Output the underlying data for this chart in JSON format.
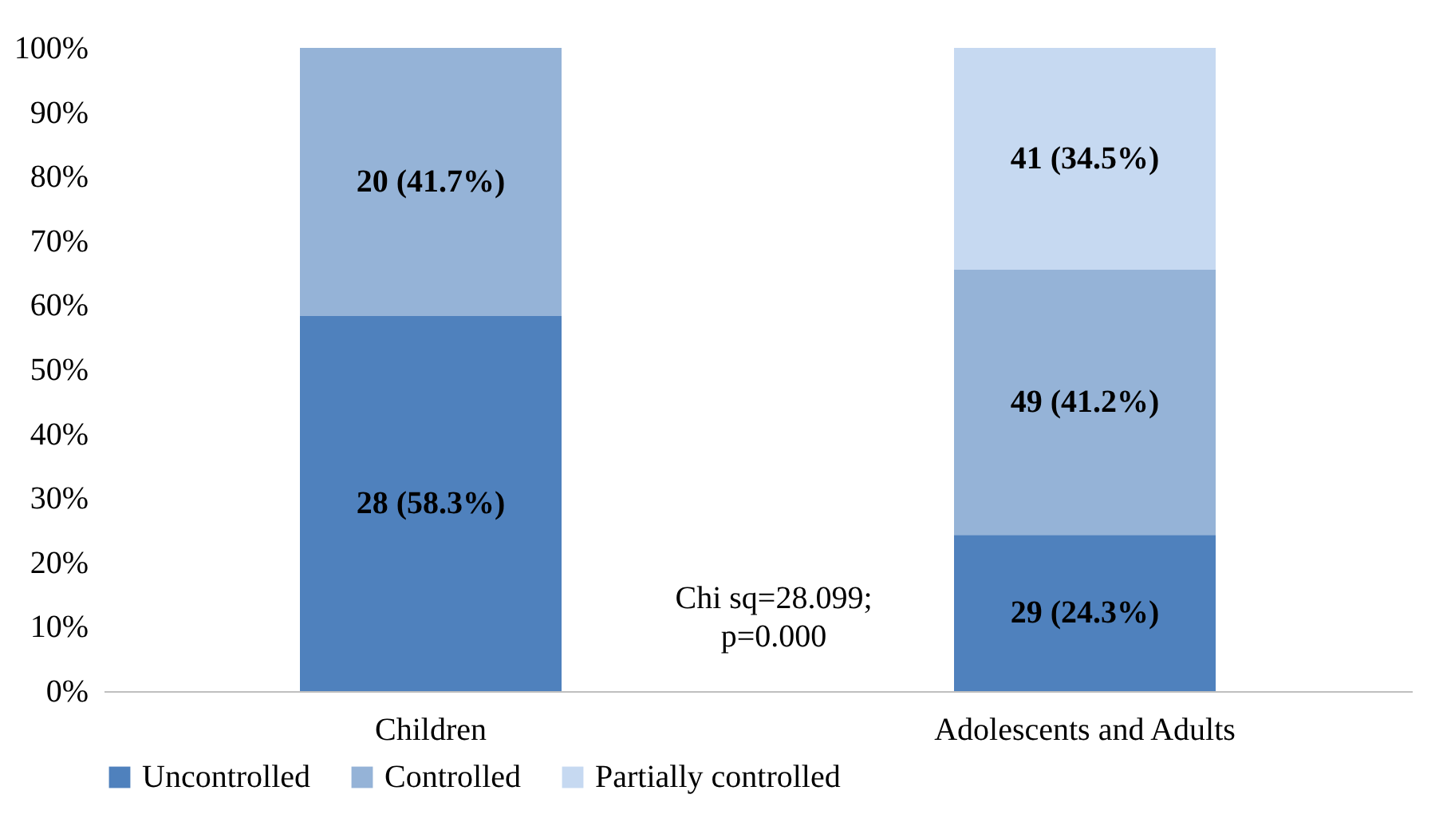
{
  "chart_data": {
    "type": "bar",
    "stacked": true,
    "categories": [
      "Children",
      "Adolescents and Adults"
    ],
    "series": [
      {
        "name": "Uncontrolled",
        "color": "#4f81bd",
        "values": [
          58.3,
          24.3
        ],
        "value_labels": [
          "28 (58.3%)",
          "29 (24.3%)"
        ]
      },
      {
        "name": "Controlled",
        "color": "#95b3d7",
        "values": [
          41.7,
          41.2
        ],
        "value_labels": [
          "20 (41.7%)",
          "49 (41.2%)"
        ]
      },
      {
        "name": "Partially controlled",
        "color": "#c6d9f1",
        "values": [
          0,
          34.5
        ],
        "value_labels": [
          null,
          "41 (34.5%)"
        ]
      }
    ],
    "ylim": [
      0,
      100
    ],
    "yticks": [
      {
        "value": 0,
        "label": "0%"
      },
      {
        "value": 10,
        "label": "10%"
      },
      {
        "value": 20,
        "label": "20%"
      },
      {
        "value": 30,
        "label": "30%"
      },
      {
        "value": 40,
        "label": "40%"
      },
      {
        "value": 50,
        "label": "50%"
      },
      {
        "value": 60,
        "label": "60%"
      },
      {
        "value": 70,
        "label": "70%"
      },
      {
        "value": 80,
        "label": "80%"
      },
      {
        "value": 90,
        "label": "90%"
      },
      {
        "value": 100,
        "label": "100%"
      }
    ],
    "legend": "bottom",
    "annotations": [
      "Chi sq=28.099;\np=0.000"
    ]
  }
}
